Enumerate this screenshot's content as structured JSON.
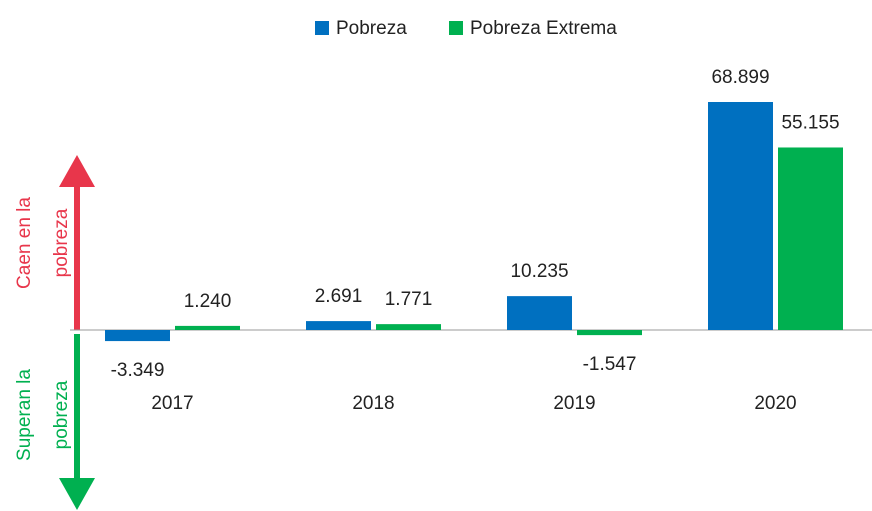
{
  "chart_data": {
    "type": "bar",
    "categories": [
      "2017",
      "2018",
      "2019",
      "2020"
    ],
    "series": [
      {
        "name": "Pobreza",
        "color": "#0070c0",
        "values": [
          -3.349,
          2.691,
          10.235,
          68.899
        ],
        "value_labels": [
          "-3.349",
          "2.691",
          "10.235",
          "68.899"
        ]
      },
      {
        "name": "Pobreza Extrema",
        "color": "#00b050",
        "values": [
          1.24,
          1.771,
          -1.547,
          55.155
        ],
        "value_labels": [
          "1.240",
          "1.771",
          "-1.547",
          "55.155"
        ]
      }
    ],
    "annotations": [
      {
        "lines": [
          "Caen en la",
          "pobreza"
        ],
        "color": "#e8364b"
      },
      {
        "lines": [
          "Superan la",
          "pobreza"
        ],
        "color": "#00b050"
      }
    ]
  }
}
